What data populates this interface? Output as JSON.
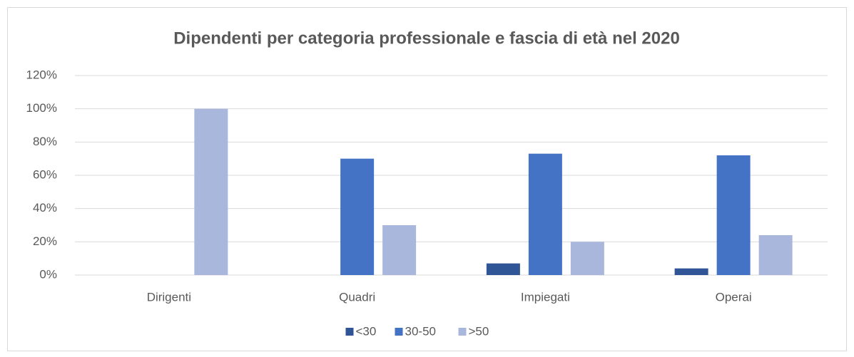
{
  "chart_data": {
    "type": "bar",
    "title": "Dipendenti per categoria professionale e fascia di età nel 2020",
    "categories": [
      "Dirigenti",
      "Quadri",
      "Impiegati",
      "Operai"
    ],
    "series": [
      {
        "name": "<30",
        "color": "#2f5597",
        "values": [
          0,
          0,
          7,
          4
        ]
      },
      {
        "name": "30-50",
        "color": "#4472c4",
        "values": [
          0,
          70,
          73,
          72
        ]
      },
      {
        "name": ">50",
        "color": "#a9b7dd",
        "values": [
          100,
          30,
          20,
          24
        ]
      }
    ],
    "ylim": [
      0,
      120
    ],
    "yticks": [
      {
        "value": 0,
        "label": "0%"
      },
      {
        "value": 20,
        "label": "20%"
      },
      {
        "value": 40,
        "label": "40%"
      },
      {
        "value": 60,
        "label": "60%"
      },
      {
        "value": 80,
        "label": "80%"
      },
      {
        "value": 100,
        "label": "100%"
      },
      {
        "value": 120,
        "label": "120%"
      }
    ],
    "grid": true,
    "legend": "bottom"
  }
}
